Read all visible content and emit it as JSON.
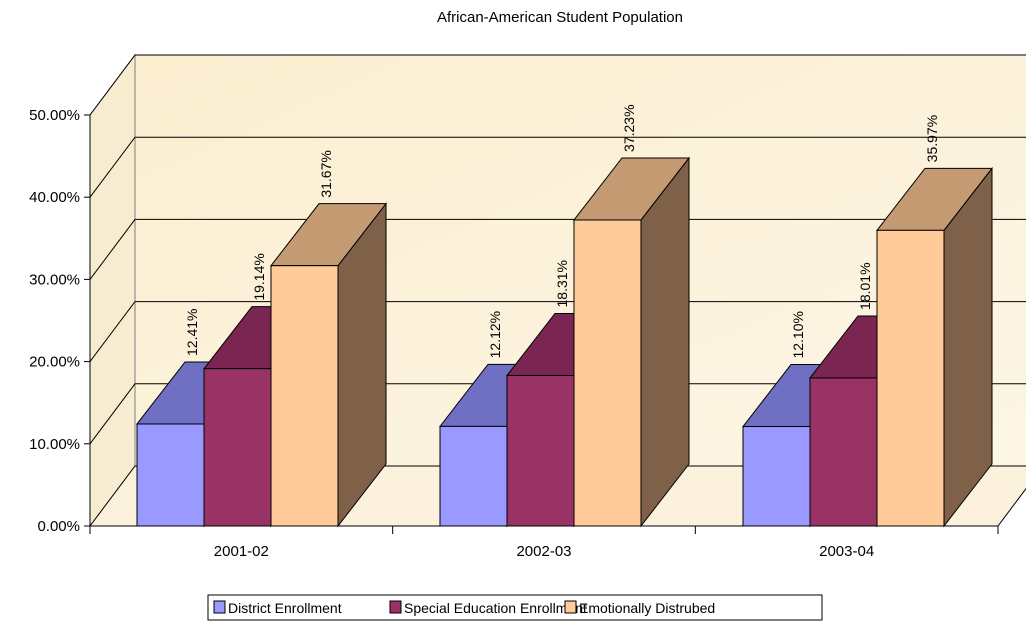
{
  "chart_data": {
    "type": "bar",
    "title": "African-American Student Population",
    "xlabel": "",
    "ylabel": "",
    "ylim": [
      0,
      0.5
    ],
    "y_ticks": [
      "0.00%",
      "10.00%",
      "20.00%",
      "30.00%",
      "40.00%",
      "50.00%"
    ],
    "categories": [
      "2001-02",
      "2002-03",
      "2003-04"
    ],
    "series": [
      {
        "name": "District Enrollment",
        "values": [
          0.1241,
          0.1212,
          0.121
        ],
        "labels": [
          "12.41%",
          "12.12%",
          "12.10%"
        ],
        "colors": {
          "front": "#9999ff",
          "top": "#6f6fc4",
          "side": "#5a5aa6"
        }
      },
      {
        "name": "Special Education Enrollment",
        "values": [
          0.1914,
          0.1831,
          0.1801
        ],
        "labels": [
          "19.14%",
          "18.31%",
          "18.01%"
        ],
        "colors": {
          "front": "#993366",
          "top": "#7a2552",
          "side": "#621c42"
        }
      },
      {
        "name": "Emotionally Distrubed",
        "values": [
          0.3167,
          0.3723,
          0.3597
        ],
        "labels": [
          "31.67%",
          "37.23%",
          "35.97%"
        ],
        "colors": {
          "front": "#ffcc99",
          "top": "#c49a73",
          "side": "#7f6048"
        }
      }
    ],
    "grid": true,
    "legend_position": "bottom",
    "style": "3d-clustered-column",
    "plot_background": "#fbf1d8"
  }
}
